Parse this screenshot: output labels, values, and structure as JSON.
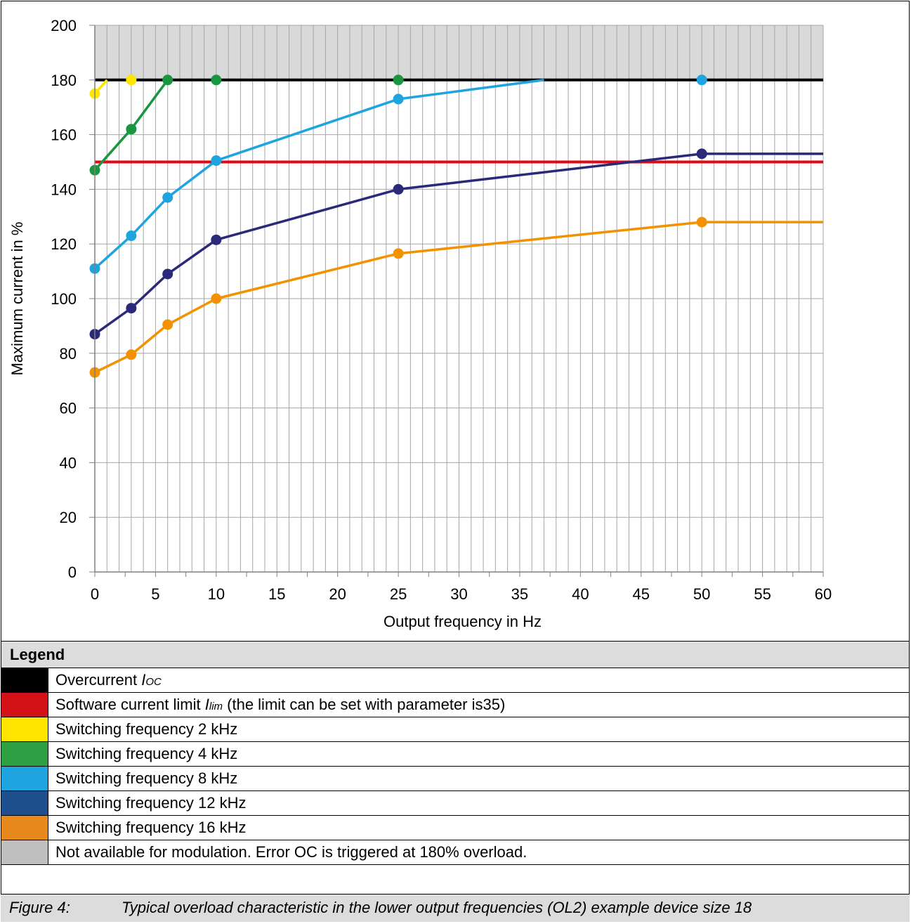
{
  "chart_data": {
    "type": "line",
    "xlabel": "Output frequency in Hz",
    "ylabel": "Maximum current in %",
    "xlim": [
      0,
      60
    ],
    "ylim": [
      0,
      200
    ],
    "x_ticks": [
      0,
      5,
      10,
      15,
      20,
      25,
      30,
      35,
      40,
      45,
      50,
      55,
      60
    ],
    "y_ticks": [
      0,
      20,
      40,
      60,
      80,
      100,
      120,
      140,
      160,
      180,
      200
    ],
    "grid": true,
    "shaded_region": {
      "from": 180,
      "to": 200,
      "color": "#d9d9d9"
    },
    "reference_lines": [
      {
        "value": 180,
        "color": "#000000"
      },
      {
        "value": 150,
        "color": "#e30613"
      }
    ],
    "series": [
      {
        "name": "Switching frequency 2 kHz",
        "color": "#ffe600",
        "x": [
          0,
          3
        ],
        "y": [
          175,
          180
        ],
        "line_x": [
          0,
          1
        ],
        "line_y": [
          175,
          180
        ]
      },
      {
        "name": "Switching frequency 4 kHz",
        "color": "#1a9641",
        "x": [
          0,
          3,
          6,
          10,
          25
        ],
        "y": [
          147,
          162,
          180,
          180,
          180
        ],
        "line_x": [
          0,
          3,
          6
        ],
        "line_y": [
          147,
          162,
          180
        ]
      },
      {
        "name": "Switching frequency 8 kHz",
        "color": "#1ea5e0",
        "x": [
          0,
          3,
          6,
          10,
          25,
          50
        ],
        "y": [
          111,
          123,
          137,
          150.5,
          173,
          180
        ],
        "line_x": [
          0,
          3,
          6,
          10,
          25,
          37
        ],
        "line_y": [
          111,
          123,
          137,
          150.5,
          173,
          180
        ]
      },
      {
        "name": "Switching frequency 12 kHz",
        "color": "#2b2a7a",
        "x": [
          0,
          3,
          6,
          10,
          25,
          50
        ],
        "y": [
          87,
          96.5,
          109,
          121.5,
          140,
          153
        ],
        "line_x": [
          0,
          3,
          6,
          10,
          25,
          50,
          60
        ],
        "line_y": [
          87,
          96.5,
          109,
          121.5,
          140,
          153,
          153
        ]
      },
      {
        "name": "Switching frequency 16 kHz",
        "color": "#f39200",
        "x": [
          0,
          3,
          6,
          10,
          25,
          50
        ],
        "y": [
          73,
          79.5,
          90.5,
          100,
          116.5,
          128
        ],
        "line_x": [
          0,
          3,
          6,
          10,
          25,
          50,
          60
        ],
        "line_y": [
          73,
          79.5,
          90.5,
          100,
          116.5,
          128,
          128
        ]
      }
    ]
  },
  "legend": {
    "title": "Legend",
    "items": [
      {
        "color": "#000000",
        "label": "Overcurrent ",
        "sym": "I",
        "sub": "OC",
        "rest": ""
      },
      {
        "color": "#d31119",
        "label": "Software current limit ",
        "sym": "I",
        "sub": "lim",
        "rest": " (the limit can be set with parameter is35)"
      },
      {
        "color": "#ffe600",
        "label": "Switching frequency 2 kHz"
      },
      {
        "color": "#2ea043",
        "label": "Switching frequency 4 kHz"
      },
      {
        "color": "#1ea5e0",
        "label": "Switching frequency 8 kHz"
      },
      {
        "color": "#1f4e8c",
        "label": "Switching frequency 12 kHz"
      },
      {
        "color": "#e8891e",
        "label": "Switching frequency 16 kHz"
      },
      {
        "color": "#bfbfbf",
        "label": "Not available for modulation. Error OC is triggered at 180% overload."
      }
    ]
  },
  "caption": {
    "number": "Figure 4:",
    "text": "Typical overload characteristic in the lower output frequencies (OL2) example device size 18"
  }
}
